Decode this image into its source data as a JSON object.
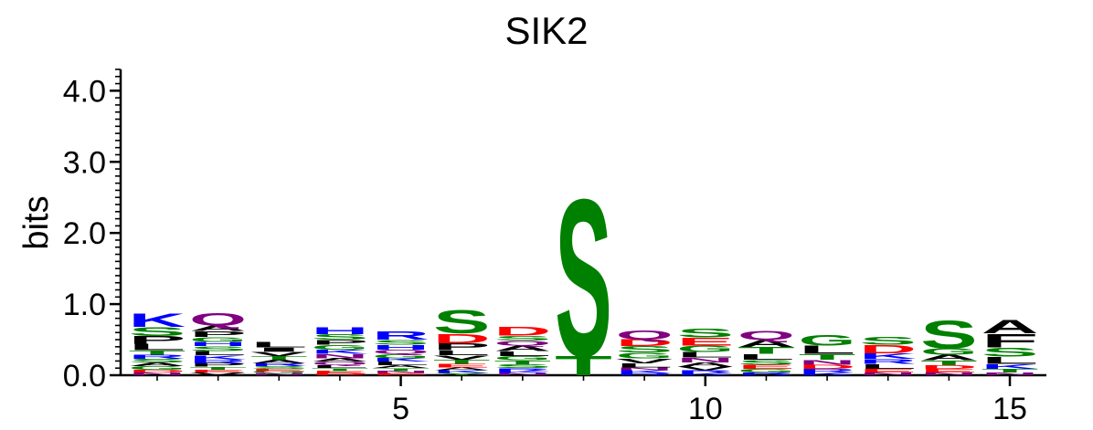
{
  "chart_data": {
    "type": "sequence-logo",
    "title": "SIK2",
    "xlabel": "",
    "ylabel": "bits",
    "ylim": [
      0,
      4.3
    ],
    "yticks": [
      "0.0",
      "1.0",
      "2.0",
      "3.0",
      "4.0"
    ],
    "xlim": [
      0.4,
      15.6
    ],
    "xticks": [
      "5",
      "10",
      "15"
    ],
    "colors": {
      "hydrophobic": "#000000",
      "polar": "#008000",
      "basic": "#0000ff",
      "acidic": "#ff0000",
      "amide": "#800080"
    },
    "columns": [
      {
        "pos": 1,
        "stack": [
          [
            "N",
            0.04
          ],
          [
            "D",
            0.04
          ],
          [
            "G",
            0.05
          ],
          [
            "A",
            0.05
          ],
          [
            "S",
            0.05
          ],
          [
            "R",
            0.06
          ],
          [
            "T",
            0.06
          ],
          [
            "L",
            0.09
          ],
          [
            "P",
            0.11
          ],
          [
            "S",
            0.13
          ],
          [
            "K",
            0.2
          ]
        ]
      },
      {
        "pos": 2,
        "stack": [
          [
            "V",
            0.04
          ],
          [
            "E",
            0.04
          ],
          [
            "T",
            0.04
          ],
          [
            "P",
            0.05
          ],
          [
            "R",
            0.05
          ],
          [
            "K",
            0.06
          ],
          [
            "L",
            0.06
          ],
          [
            "S",
            0.07
          ],
          [
            "H",
            0.06
          ],
          [
            "G",
            0.07
          ],
          [
            "P",
            0.08
          ],
          [
            "A",
            0.08
          ],
          [
            "Q",
            0.18
          ]
        ]
      },
      {
        "pos": 3,
        "stack": [
          [
            "N",
            0.03
          ],
          [
            "G",
            0.03
          ],
          [
            "E",
            0.03
          ],
          [
            "S",
            0.04
          ],
          [
            "R",
            0.04
          ],
          [
            "A",
            0.05
          ],
          [
            "T",
            0.05
          ],
          [
            "V",
            0.06
          ],
          [
            "I",
            0.06
          ],
          [
            "L",
            0.08
          ]
        ]
      },
      {
        "pos": 4,
        "stack": [
          [
            "D",
            0.03
          ],
          [
            "E",
            0.03
          ],
          [
            "T",
            0.04
          ],
          [
            "L",
            0.04
          ],
          [
            "Q",
            0.05
          ],
          [
            "A",
            0.05
          ],
          [
            "N",
            0.06
          ],
          [
            "K",
            0.06
          ],
          [
            "G",
            0.07
          ],
          [
            "P",
            0.07
          ],
          [
            "S",
            0.08
          ],
          [
            "H",
            0.1
          ]
        ]
      },
      {
        "pos": 5,
        "stack": [
          [
            "E",
            0.03
          ],
          [
            "N",
            0.03
          ],
          [
            "T",
            0.04
          ],
          [
            "A",
            0.04
          ],
          [
            "L",
            0.05
          ],
          [
            "K",
            0.05
          ],
          [
            "G",
            0.06
          ],
          [
            "Q",
            0.06
          ],
          [
            "H",
            0.07
          ],
          [
            "S",
            0.07
          ],
          [
            "R",
            0.12
          ]
        ]
      },
      {
        "pos": 6,
        "stack": [
          [
            "Y",
            0.03
          ],
          [
            "K",
            0.04
          ],
          [
            "A",
            0.04
          ],
          [
            "E",
            0.05
          ],
          [
            "T",
            0.06
          ],
          [
            "V",
            0.06
          ],
          [
            "L",
            0.07
          ],
          [
            "P",
            0.1
          ],
          [
            "D",
            0.14
          ],
          [
            "S",
            0.33
          ]
        ]
      },
      {
        "pos": 7,
        "stack": [
          [
            "N",
            0.03
          ],
          [
            "K",
            0.03
          ],
          [
            "R",
            0.04
          ],
          [
            "S",
            0.05
          ],
          [
            "T",
            0.06
          ],
          [
            "G",
            0.06
          ],
          [
            "L",
            0.07
          ],
          [
            "A",
            0.08
          ],
          [
            "Q",
            0.07
          ],
          [
            "S",
            0.07
          ],
          [
            "D",
            0.13
          ]
        ]
      },
      {
        "pos": 8,
        "stack": [
          [
            "T",
            0.28
          ],
          [
            "S",
            2.27
          ]
        ]
      },
      {
        "pos": 9,
        "stack": [
          [
            "R",
            0.03
          ],
          [
            "K",
            0.04
          ],
          [
            "N",
            0.04
          ],
          [
            "L",
            0.06
          ],
          [
            "V",
            0.07
          ],
          [
            "G",
            0.08
          ],
          [
            "S",
            0.09
          ],
          [
            "D",
            0.1
          ],
          [
            "Q",
            0.13
          ]
        ]
      },
      {
        "pos": 10,
        "stack": [
          [
            "K",
            0.03
          ],
          [
            "R",
            0.04
          ],
          [
            "V",
            0.05
          ],
          [
            "A",
            0.06
          ],
          [
            "N",
            0.07
          ],
          [
            "L",
            0.08
          ],
          [
            "G",
            0.09
          ],
          [
            "E",
            0.11
          ],
          [
            "S",
            0.13
          ]
        ]
      },
      {
        "pos": 11,
        "stack": [
          [
            "R",
            0.04
          ],
          [
            "G",
            0.05
          ],
          [
            "E",
            0.06
          ],
          [
            "S",
            0.07
          ],
          [
            "L",
            0.08
          ],
          [
            "T",
            0.1
          ],
          [
            "A",
            0.1
          ],
          [
            "Q",
            0.13
          ]
        ]
      },
      {
        "pos": 12,
        "stack": [
          [
            "K",
            0.04
          ],
          [
            "R",
            0.05
          ],
          [
            "D",
            0.06
          ],
          [
            "N",
            0.07
          ],
          [
            "T",
            0.08
          ],
          [
            "L",
            0.12
          ],
          [
            "G",
            0.15
          ]
        ]
      },
      {
        "pos": 13,
        "stack": [
          [
            "N",
            0.04
          ],
          [
            "E",
            0.05
          ],
          [
            "L",
            0.07
          ],
          [
            "R",
            0.07
          ],
          [
            "K",
            0.08
          ],
          [
            "D",
            0.12
          ],
          [
            "S",
            0.11
          ]
        ]
      },
      {
        "pos": 14,
        "stack": [
          [
            "N",
            0.04
          ],
          [
            "E",
            0.05
          ],
          [
            "D",
            0.05
          ],
          [
            "T",
            0.07
          ],
          [
            "A",
            0.08
          ],
          [
            "G",
            0.09
          ],
          [
            "S",
            0.4
          ]
        ]
      },
      {
        "pos": 15,
        "stack": [
          [
            "N",
            0.04
          ],
          [
            "T",
            0.05
          ],
          [
            "K",
            0.07
          ],
          [
            "L",
            0.1
          ],
          [
            "S",
            0.13
          ],
          [
            "F",
            0.2
          ],
          [
            "A",
            0.2
          ]
        ]
      }
    ]
  }
}
